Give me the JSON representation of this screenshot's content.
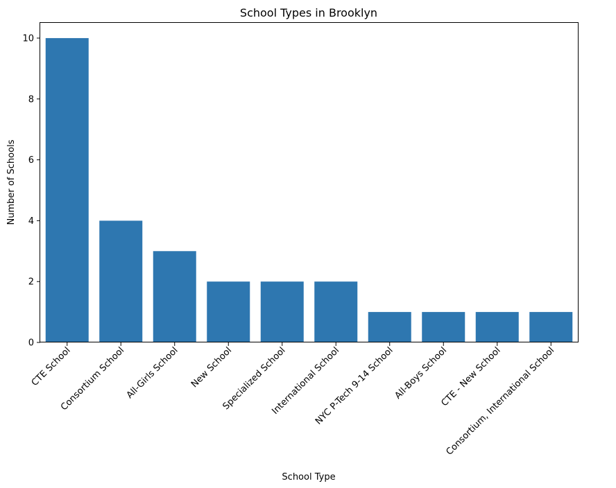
{
  "chart_data": {
    "type": "bar",
    "title": "School Types in Brooklyn",
    "xlabel": "School Type",
    "ylabel": "Number of Schools",
    "categories": [
      "CTE School",
      "Consortium School",
      "All-Girls School",
      "New School",
      "Specialized School",
      "International School",
      "NYC P-Tech 9-14 School",
      "All-Boys School",
      "CTE - New School",
      "Consortium, International School"
    ],
    "values": [
      10,
      4,
      3,
      2,
      2,
      2,
      1,
      1,
      1,
      1
    ],
    "ylim": [
      0,
      10.5
    ],
    "yticks": [
      "0",
      "2",
      "4",
      "6",
      "8",
      "10"
    ],
    "grid": false,
    "legend": "none",
    "bar_color": "#2e77b0"
  }
}
